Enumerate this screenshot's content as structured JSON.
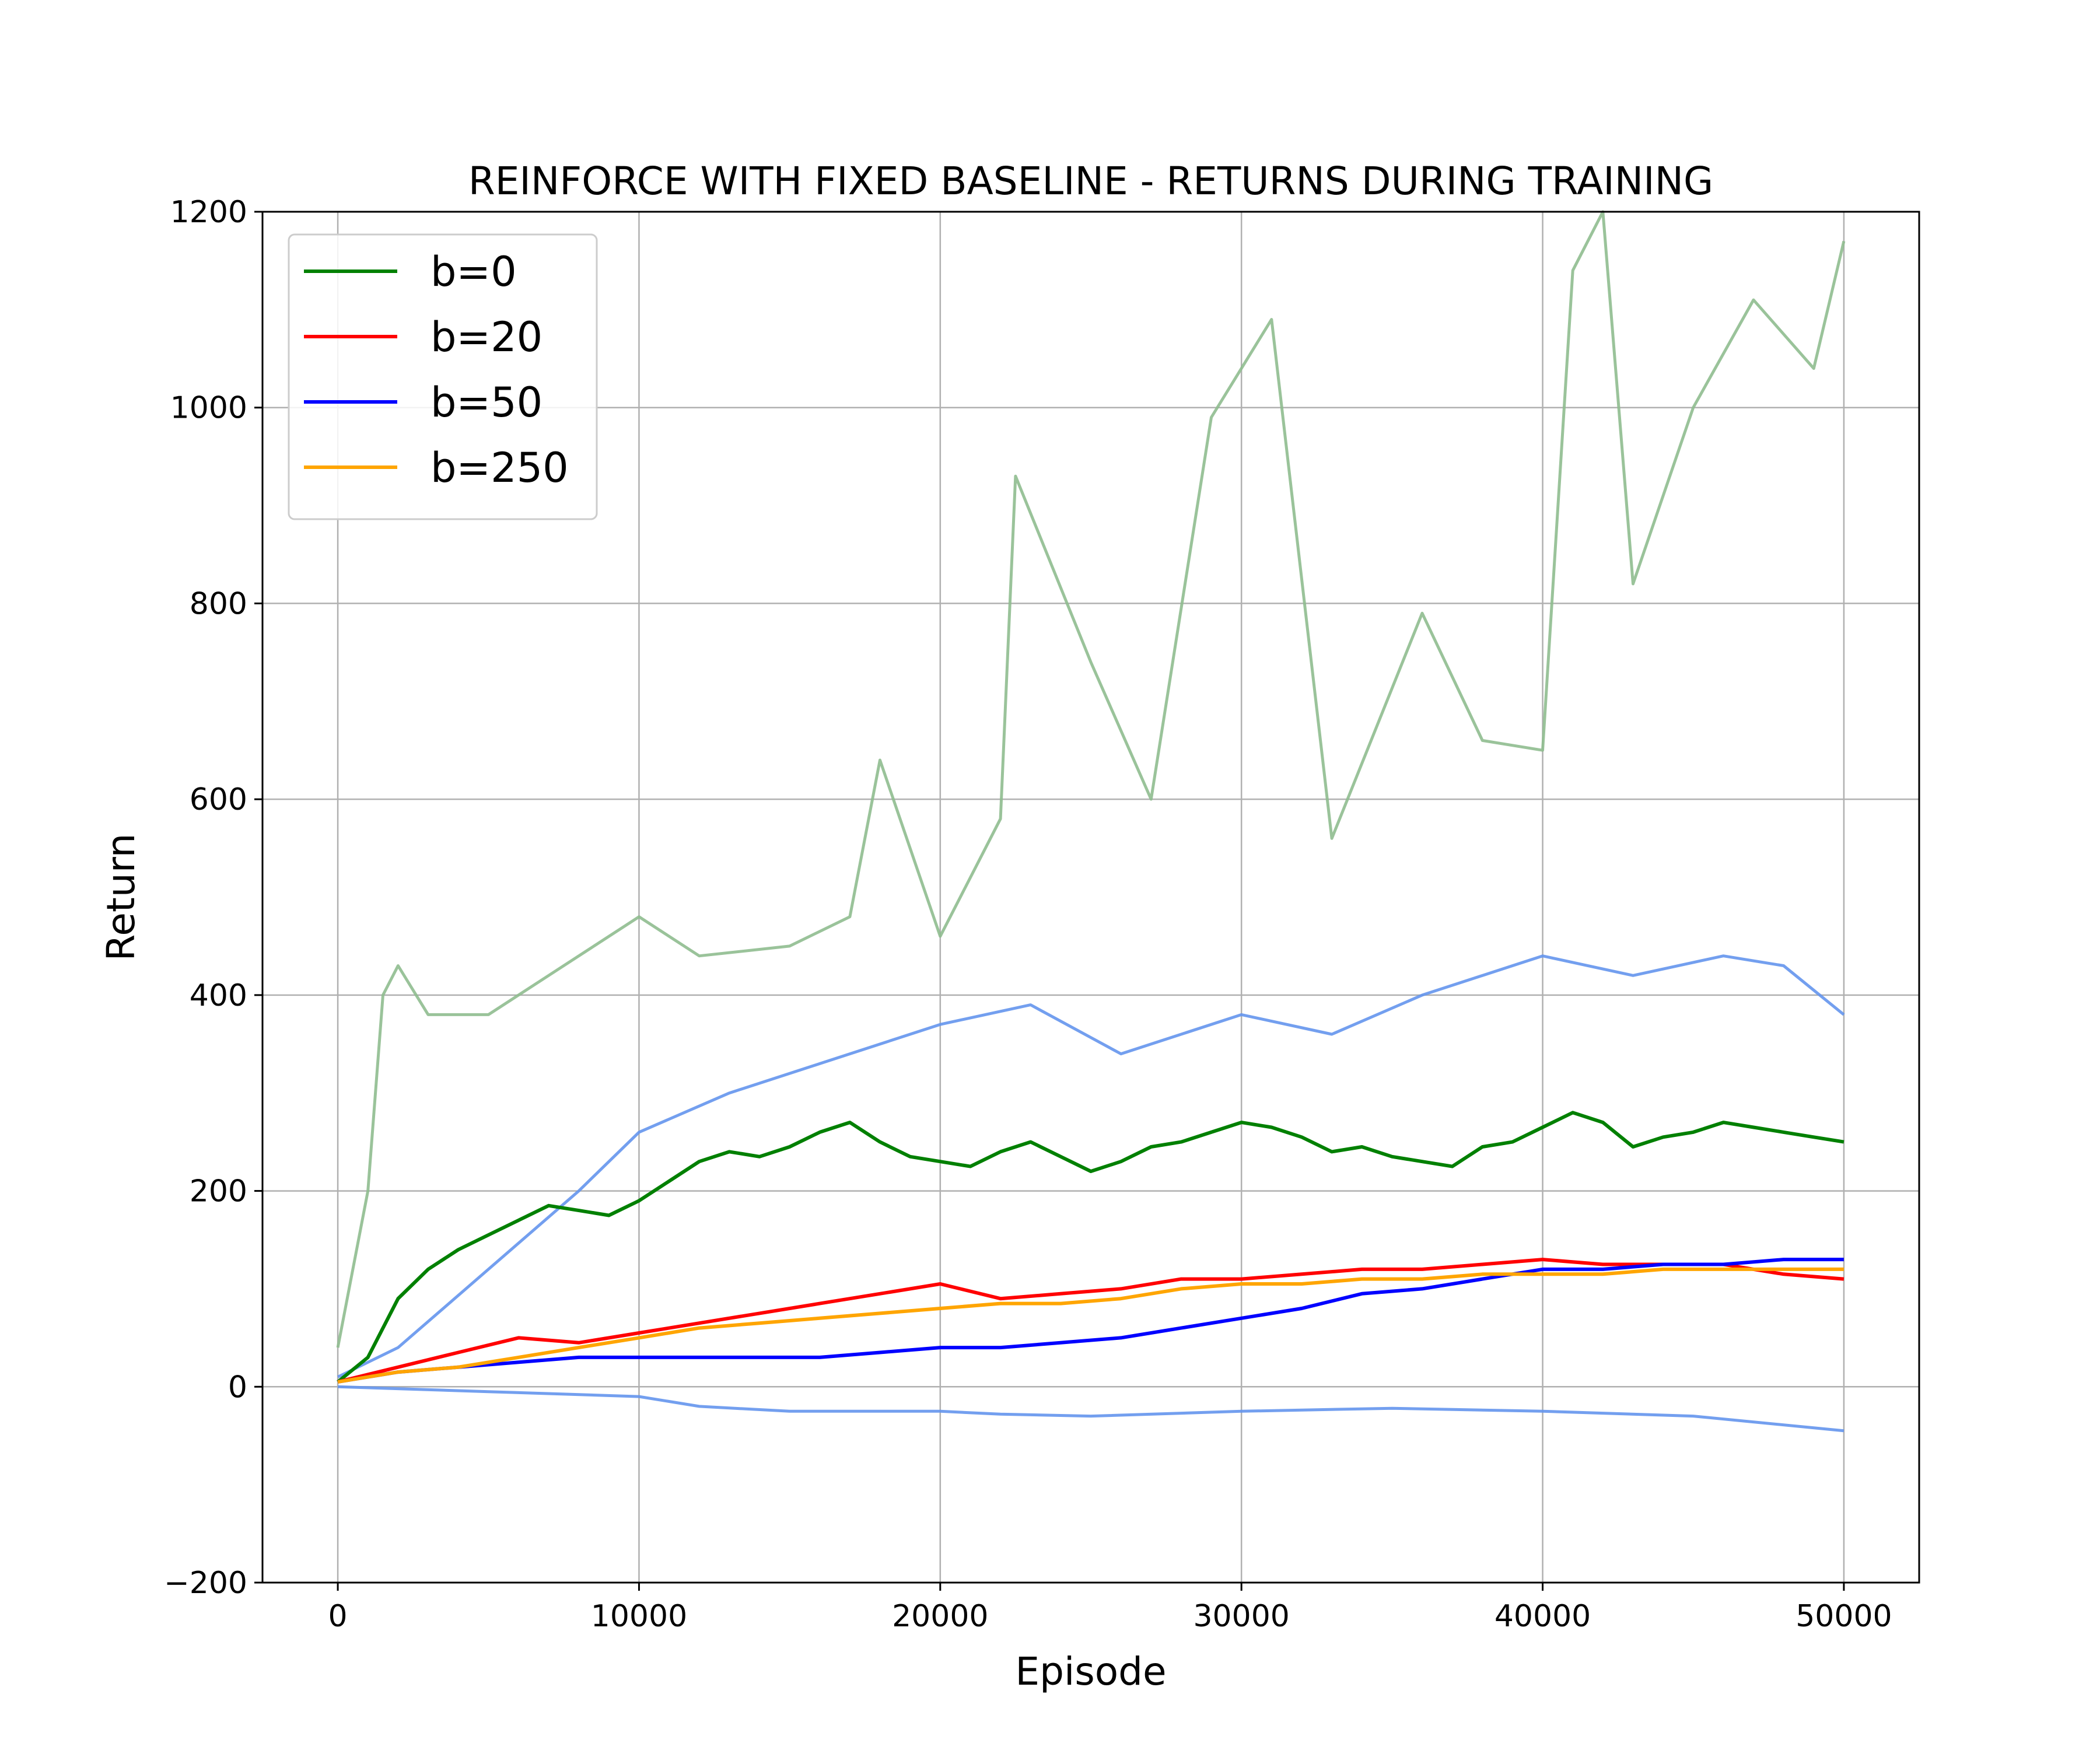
{
  "chart_data": {
    "type": "line",
    "title": "REINFORCE WITH FIXED BASELINE - RETURNS DURING TRAINING",
    "xlabel": "Episode",
    "ylabel": "Return",
    "xlim": [
      -2500,
      52500
    ],
    "ylim": [
      -200,
      1200
    ],
    "xticks": [
      0,
      10000,
      20000,
      30000,
      40000,
      50000
    ],
    "yticks": [
      -200,
      0,
      200,
      400,
      600,
      800,
      1000,
      1200
    ],
    "xtick_labels": [
      "0",
      "10000",
      "20000",
      "30000",
      "40000",
      "50000"
    ],
    "ytick_labels": [
      "−200",
      "0",
      "200",
      "400",
      "600",
      "800",
      "1000",
      "1200"
    ],
    "grid": true,
    "legend_position": "top-left",
    "legend": [
      {
        "label": "b=0",
        "color": "#008000"
      },
      {
        "label": "b=20",
        "color": "#ff0000"
      },
      {
        "label": "b=50",
        "color": "#0000ff"
      },
      {
        "label": "b=250",
        "color": "#ffa500"
      }
    ],
    "background_runs": [
      {
        "color": "#8fbc8f",
        "note_visible": "individual runs for b=0 (light green)",
        "x": [
          0,
          1000,
          1500,
          2000,
          3000,
          5000,
          7000,
          10000,
          12000,
          15000,
          17000,
          18000,
          20000,
          22000,
          22500,
          25000,
          27000,
          29000,
          31000,
          33000,
          36000,
          38000,
          40000,
          41000,
          42000,
          43000,
          45000,
          47000,
          49000,
          50000
        ],
        "y": [
          40,
          200,
          400,
          430,
          380,
          380,
          420,
          480,
          440,
          450,
          480,
          640,
          460,
          580,
          930,
          740,
          600,
          990,
          1090,
          560,
          790,
          660,
          650,
          1140,
          1200,
          820,
          1000,
          1110,
          1040,
          1170
        ]
      },
      {
        "color": "#6495ed",
        "note_visible": "individual runs for b=50 (light blue, upper)",
        "x": [
          0,
          2000,
          5000,
          8000,
          10000,
          13000,
          16000,
          20000,
          23000,
          26000,
          30000,
          33000,
          36000,
          40000,
          43000,
          46000,
          48000,
          50000
        ],
        "y": [
          10,
          40,
          120,
          200,
          260,
          300,
          330,
          370,
          390,
          340,
          380,
          360,
          400,
          440,
          420,
          440,
          430,
          380
        ]
      },
      {
        "color": "#6495ed",
        "note_visible": "individual run with negative returns",
        "x": [
          0,
          5000,
          10000,
          12000,
          15000,
          20000,
          22000,
          25000,
          30000,
          35000,
          40000,
          45000,
          50000
        ],
        "y": [
          0,
          -5,
          -10,
          -20,
          -25,
          -25,
          -28,
          -30,
          -25,
          -22,
          -25,
          -30,
          -45
        ]
      }
    ],
    "series": [
      {
        "name": "b=0",
        "color": "#008000",
        "x": [
          0,
          1000,
          2000,
          3000,
          4000,
          5000,
          6000,
          7000,
          8000,
          9000,
          10000,
          11000,
          12000,
          13000,
          14000,
          15000,
          16000,
          17000,
          18000,
          19000,
          20000,
          21000,
          22000,
          23000,
          24000,
          25000,
          26000,
          27000,
          28000,
          29000,
          30000,
          31000,
          32000,
          33000,
          34000,
          35000,
          36000,
          37000,
          38000,
          39000,
          40000,
          41000,
          42000,
          43000,
          44000,
          45000,
          46000,
          47000,
          48000,
          49000,
          50000
        ],
        "y": [
          5,
          30,
          90,
          120,
          140,
          155,
          170,
          185,
          180,
          175,
          190,
          210,
          230,
          240,
          235,
          245,
          260,
          270,
          250,
          235,
          230,
          225,
          240,
          250,
          235,
          220,
          230,
          245,
          250,
          260,
          270,
          265,
          255,
          240,
          245,
          235,
          230,
          225,
          245,
          250,
          265,
          280,
          270,
          245,
          255,
          260,
          270,
          265,
          260,
          255,
          250
        ]
      },
      {
        "name": "b=20",
        "color": "#ff0000",
        "x": [
          0,
          2000,
          4000,
          6000,
          8000,
          10000,
          12000,
          14000,
          16000,
          18000,
          20000,
          22000,
          24000,
          26000,
          28000,
          30000,
          32000,
          34000,
          36000,
          38000,
          40000,
          42000,
          44000,
          46000,
          48000,
          50000
        ],
        "y": [
          5,
          20,
          35,
          50,
          45,
          55,
          65,
          75,
          85,
          95,
          105,
          90,
          95,
          100,
          110,
          110,
          115,
          120,
          120,
          125,
          130,
          125,
          125,
          125,
          115,
          110
        ]
      },
      {
        "name": "b=50",
        "color": "#0000ff",
        "x": [
          0,
          2000,
          4000,
          6000,
          8000,
          10000,
          12000,
          14000,
          16000,
          18000,
          20000,
          22000,
          24000,
          26000,
          28000,
          30000,
          32000,
          34000,
          36000,
          38000,
          40000,
          42000,
          44000,
          46000,
          48000,
          50000
        ],
        "y": [
          5,
          15,
          20,
          25,
          30,
          30,
          30,
          30,
          30,
          35,
          40,
          40,
          45,
          50,
          60,
          70,
          80,
          95,
          100,
          110,
          120,
          120,
          125,
          125,
          130,
          130
        ]
      },
      {
        "name": "b=250",
        "color": "#ffa500",
        "x": [
          0,
          2000,
          4000,
          6000,
          8000,
          10000,
          12000,
          14000,
          16000,
          18000,
          20000,
          22000,
          24000,
          26000,
          28000,
          30000,
          32000,
          34000,
          36000,
          38000,
          40000,
          42000,
          44000,
          46000,
          48000,
          50000
        ],
        "y": [
          5,
          15,
          20,
          30,
          40,
          50,
          60,
          65,
          70,
          75,
          80,
          85,
          85,
          90,
          100,
          105,
          105,
          110,
          110,
          115,
          115,
          115,
          120,
          120,
          120,
          120
        ]
      }
    ]
  }
}
